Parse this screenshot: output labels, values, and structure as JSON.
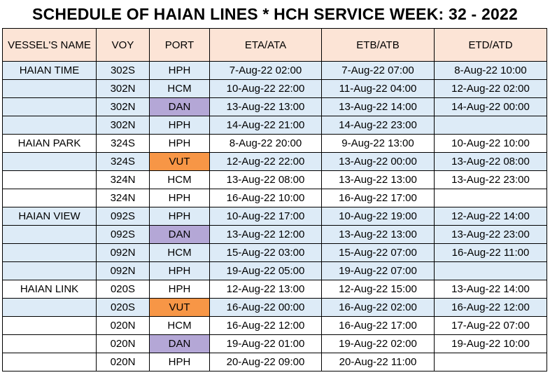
{
  "title": "SCHEDULE OF HAIAN LINES * HCH SERVICE WEEK: 32 - 2022",
  "headers": {
    "vessel": "VESSEL'S NAME",
    "voy": "VOY",
    "port": "PORT",
    "eta": "ETA/ATA",
    "etb": "ETB/ATB",
    "etd": "ETD/ATD"
  },
  "port_colors": {
    "DAN": "#b4a7d6",
    "VUT": "#f79646",
    "header": "#fce4d6",
    "band": "#ddebf7"
  },
  "rows": [
    {
      "vessel": "HAIAN TIME",
      "voy": "302S",
      "port": "HPH",
      "eta": "7-Aug-22 02:00",
      "etb": "7-Aug-22 07:00",
      "etd": "8-Aug-22 10:00"
    },
    {
      "vessel": "",
      "voy": "302N",
      "port": "HCM",
      "eta": "10-Aug-22 22:00",
      "etb": "11-Aug-22 04:00",
      "etd": "12-Aug-22 02:00"
    },
    {
      "vessel": "",
      "voy": "302N",
      "port": "DAN",
      "eta": "13-Aug-22 13:00",
      "etb": "13-Aug-22 14:00",
      "etd": "14-Aug-22 00:00"
    },
    {
      "vessel": "",
      "voy": "302N",
      "port": "HPH",
      "eta": "14-Aug-22 21:00",
      "etb": "14-Aug-22 23:00",
      "etd": ""
    },
    {
      "vessel": "HAIAN PARK",
      "voy": "324S",
      "port": "HPH",
      "eta": "8-Aug-22 20:00",
      "etb": "9-Aug-22 13:00",
      "etd": "10-Aug-22 10:00"
    },
    {
      "vessel": "",
      "voy": "324S",
      "port": "VUT",
      "eta": "12-Aug-22 22:00",
      "etb": "13-Aug-22 00:00",
      "etd": "13-Aug-22 08:00"
    },
    {
      "vessel": "",
      "voy": "324N",
      "port": "HCM",
      "eta": "13-Aug-22 08:00",
      "etb": "13-Aug-22 13:00",
      "etd": "13-Aug-22 23:00"
    },
    {
      "vessel": "",
      "voy": "324N",
      "port": "HPH",
      "eta": "16-Aug-22 10:00",
      "etb": "16-Aug-22 17:00",
      "etd": ""
    },
    {
      "vessel": "HAIAN VIEW",
      "voy": "092S",
      "port": "HPH",
      "eta": "10-Aug-22 17:00",
      "etb": "10-Aug-22 19:00",
      "etd": "12-Aug-22 14:00"
    },
    {
      "vessel": "",
      "voy": "092S",
      "port": "DAN",
      "eta": "13-Aug-22 12:00",
      "etb": "13-Aug-22 13:00",
      "etd": "13-Aug-22 23:00"
    },
    {
      "vessel": "",
      "voy": "092N",
      "port": "HCM",
      "eta": "15-Aug-22 03:00",
      "etb": "15-Aug-22 07:00",
      "etd": "16-Aug-22 11:00"
    },
    {
      "vessel": "",
      "voy": "092N",
      "port": "HPH",
      "eta": "19-Aug-22 05:00",
      "etb": "19-Aug-22 07:00",
      "etd": ""
    },
    {
      "vessel": "HAIAN LINK",
      "voy": "020S",
      "port": "HPH",
      "eta": "12-Aug-22 13:00",
      "etb": "12-Aug-22 15:00",
      "etd": "13-Aug-22 14:00"
    },
    {
      "vessel": "",
      "voy": "020S",
      "port": "VUT",
      "eta": "16-Aug-22 00:00",
      "etb": "16-Aug-22 02:00",
      "etd": "16-Aug-22 12:00"
    },
    {
      "vessel": "",
      "voy": "020N",
      "port": "HCM",
      "eta": "16-Aug-22 12:00",
      "etb": "16-Aug-22 17:00",
      "etd": "17-Aug-22 07:00"
    },
    {
      "vessel": "",
      "voy": "020N",
      "port": "DAN",
      "eta": "19-Aug-22 01:00",
      "etb": "19-Aug-22 02:00",
      "etd": "19-Aug-22 10:00"
    },
    {
      "vessel": "",
      "voy": "020N",
      "port": "HPH",
      "eta": "20-Aug-22 09:00",
      "etb": "20-Aug-22 11:00",
      "etd": ""
    }
  ]
}
